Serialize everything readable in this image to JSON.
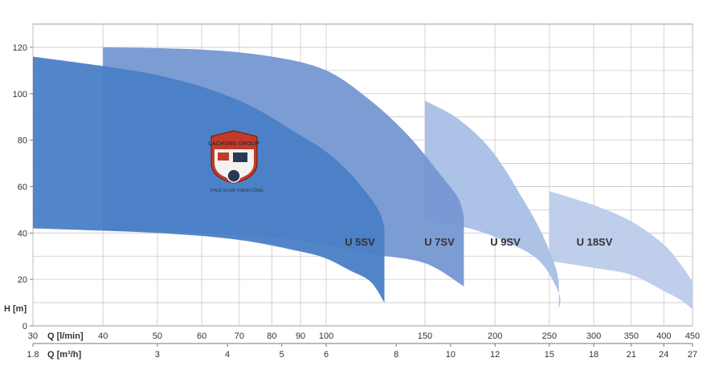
{
  "chart_data": {
    "type": "area",
    "title": "",
    "y_axis": {
      "label": "H [m]",
      "ticks": [
        "0",
        "20",
        "40",
        "60",
        "80",
        "100",
        "120"
      ],
      "ylim": [
        0,
        130
      ]
    },
    "x_axis_lpm": {
      "label": "Q [l/min]",
      "scale": "log",
      "ticks": [
        "30",
        "40",
        "50",
        "60",
        "70",
        "80",
        "90",
        "100",
        "150",
        "200",
        "250",
        "300",
        "350",
        "400",
        "450"
      ],
      "xlim": [
        30,
        450
      ]
    },
    "x_axis_m3h": {
      "label": "Q [m³/h]",
      "ticks": [
        "1.8",
        "3",
        "4",
        "5",
        "6",
        "8",
        "10",
        "12",
        "15",
        "18",
        "21",
        "24",
        "27"
      ]
    },
    "grid": true,
    "series": [
      {
        "name": "U 18SV",
        "color": "#bccbea",
        "upper": [
          [
            250,
            58
          ],
          [
            300,
            52
          ],
          [
            350,
            45
          ],
          [
            400,
            35
          ],
          [
            430,
            26
          ],
          [
            450,
            19
          ]
        ],
        "lower": [
          [
            250,
            28
          ],
          [
            300,
            25
          ],
          [
            350,
            22
          ],
          [
            400,
            15
          ],
          [
            430,
            11
          ],
          [
            450,
            7
          ]
        ]
      },
      {
        "name": "U 9SV",
        "color": "#a9bfe6",
        "upper": [
          [
            150,
            97
          ],
          [
            170,
            90
          ],
          [
            190,
            80
          ],
          [
            205,
            70
          ],
          [
            220,
            58
          ],
          [
            240,
            42
          ],
          [
            255,
            27
          ],
          [
            260,
            19
          ]
        ],
        "lower": [
          [
            150,
            45
          ],
          [
            180,
            42
          ],
          [
            210,
            36
          ],
          [
            240,
            28
          ],
          [
            260,
            14
          ],
          [
            260,
            7
          ]
        ]
      },
      {
        "name": "U 7SV",
        "color": "#7597d2",
        "upper": [
          [
            40,
            120
          ],
          [
            60,
            119
          ],
          [
            80,
            116
          ],
          [
            100,
            110
          ],
          [
            120,
            97
          ],
          [
            140,
            82
          ],
          [
            160,
            65
          ],
          [
            172,
            55
          ],
          [
            176,
            47
          ]
        ],
        "lower": [
          [
            40,
            41
          ],
          [
            60,
            40
          ],
          [
            80,
            38
          ],
          [
            100,
            35
          ],
          [
            120,
            31
          ],
          [
            150,
            27
          ],
          [
            176,
            17
          ]
        ]
      },
      {
        "name": "U 5SV",
        "color": "#4a7ec6",
        "upper": [
          [
            30,
            116
          ],
          [
            50,
            108
          ],
          [
            70,
            97
          ],
          [
            90,
            82
          ],
          [
            100,
            75
          ],
          [
            110,
            66
          ],
          [
            120,
            55
          ],
          [
            125,
            48
          ],
          [
            127,
            42
          ]
        ],
        "lower": [
          [
            30,
            42
          ],
          [
            50,
            40
          ],
          [
            70,
            37
          ],
          [
            90,
            32
          ],
          [
            100,
            29
          ],
          [
            110,
            24
          ],
          [
            120,
            19
          ],
          [
            127,
            10
          ]
        ]
      }
    ]
  },
  "logo": {
    "name": "LACHONG GROUP",
    "tagline": "PHỤC VỤ ĐỂ THÀNH CÔNG"
  }
}
